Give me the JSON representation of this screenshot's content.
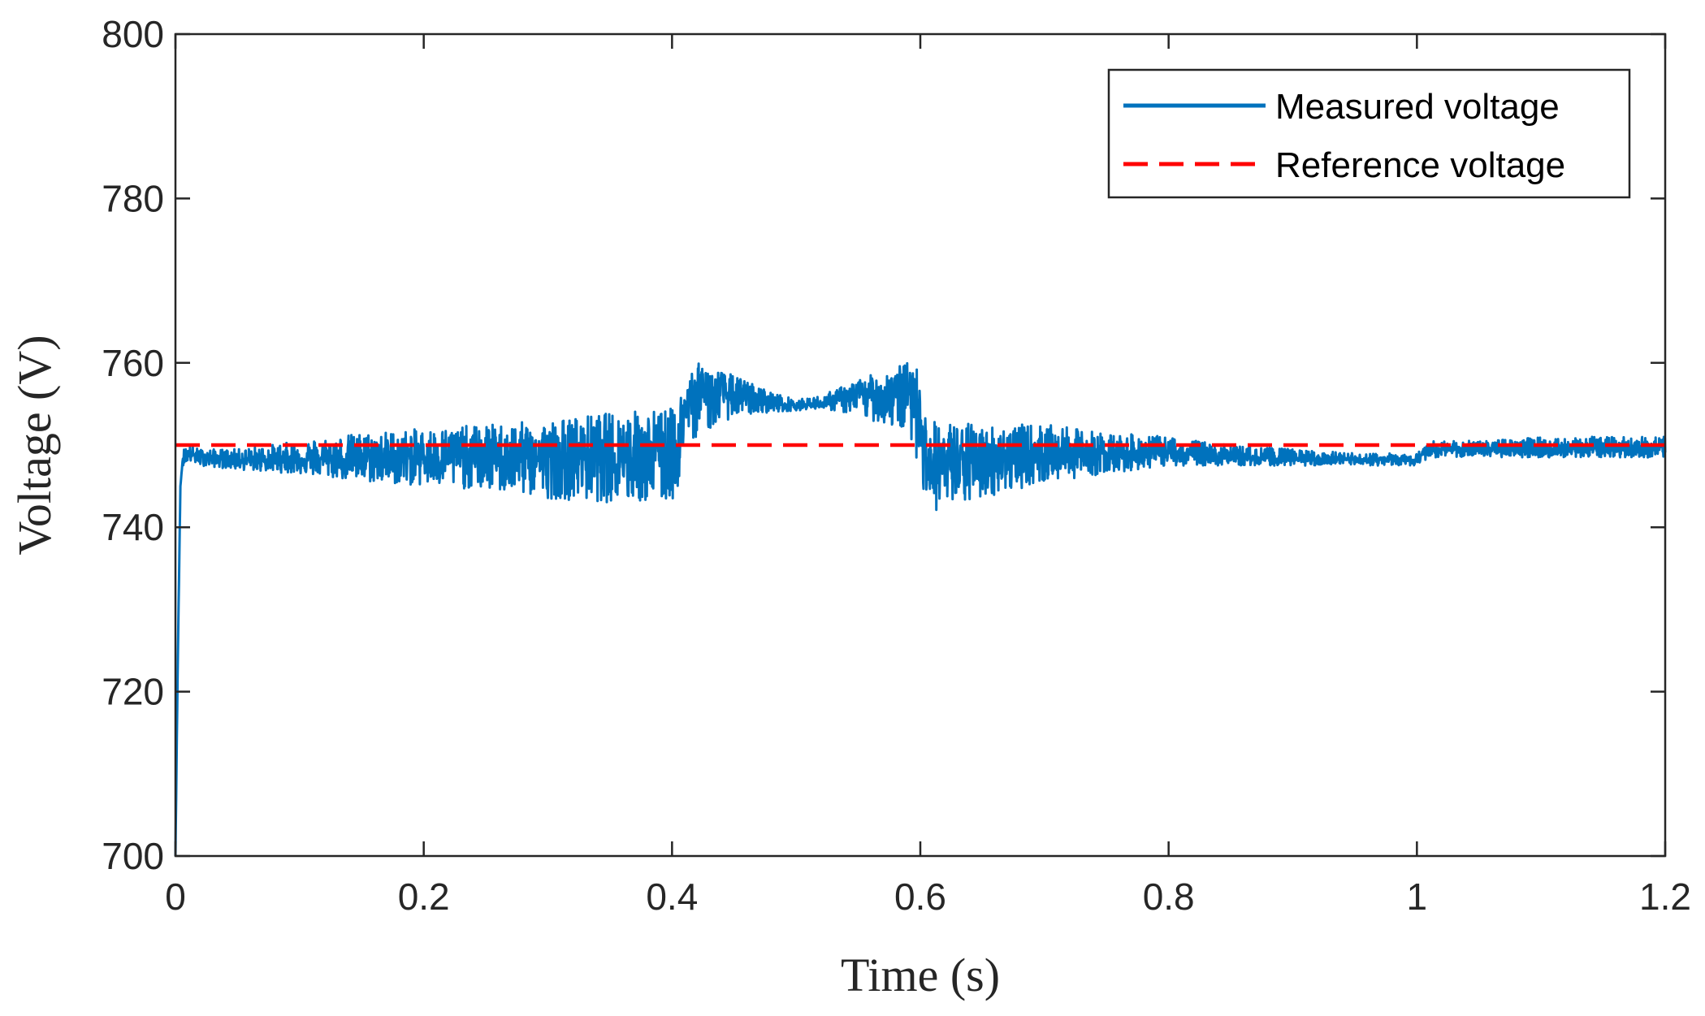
{
  "chart_data": {
    "type": "line",
    "title": "",
    "xlabel": "Time (s)",
    "ylabel": "Voltage (V)",
    "xlim": [
      0,
      1.2
    ],
    "ylim": [
      700,
      800
    ],
    "xticks": [
      0,
      0.2,
      0.4,
      0.6,
      0.8,
      1,
      1.2
    ],
    "xtick_labels": [
      "0",
      "0.2",
      "0.4",
      "0.6",
      "0.8",
      "1",
      "1.2"
    ],
    "yticks": [
      700,
      720,
      740,
      760,
      780,
      800
    ],
    "ytick_labels": [
      "700",
      "720",
      "740",
      "760",
      "780",
      "800"
    ],
    "grid": false,
    "legend_position": "top-right",
    "series": [
      {
        "name": "Measured voltage",
        "style": "solid",
        "color": "#0072BD",
        "x": [
          0,
          0.002,
          0.004,
          0.006,
          0.01,
          0.02,
          0.05,
          0.1,
          0.15,
          0.2,
          0.25,
          0.3,
          0.35,
          0.39,
          0.4,
          0.405,
          0.41,
          0.42,
          0.45,
          0.48,
          0.5,
          0.52,
          0.55,
          0.58,
          0.595,
          0.6,
          0.605,
          0.61,
          0.62,
          0.65,
          0.7,
          0.75,
          0.8,
          0.85,
          0.9,
          0.95,
          1.0,
          1.01,
          1.05,
          1.1,
          1.15,
          1.2
        ],
        "mean": [
          700,
          725,
          745,
          748.5,
          749,
          748.5,
          748.2,
          748.3,
          748.3,
          748.5,
          748.5,
          748.5,
          748.5,
          748.5,
          748.5,
          750,
          754,
          757,
          756,
          755,
          754.8,
          755,
          756,
          756.5,
          757,
          754,
          748.5,
          747.5,
          747.5,
          748,
          749,
          749,
          749,
          748.5,
          748.2,
          748.2,
          748.2,
          749.5,
          749.5,
          749.5,
          749.5,
          749.5
        ],
        "upper": [
          700,
          726,
          746,
          749.5,
          750,
          749.5,
          749.5,
          750.5,
          751.5,
          752,
          752.5,
          753,
          754,
          754.5,
          754.5,
          755,
          758.5,
          760,
          758.5,
          756.5,
          755.5,
          756,
          758,
          759.5,
          760.5,
          758,
          753,
          753,
          753,
          752.5,
          752.5,
          751.5,
          751,
          750,
          749.5,
          749,
          749,
          750.5,
          750.5,
          751,
          751,
          751
        ],
        "lower": [
          700,
          724,
          744,
          747.5,
          748,
          747.5,
          747,
          746.5,
          745.5,
          745,
          744.5,
          743.5,
          743,
          743,
          743,
          745,
          750,
          751,
          753.5,
          754,
          754.2,
          754.5,
          753.5,
          752,
          750.5,
          745,
          743,
          742,
          742,
          743.5,
          745.5,
          746.5,
          747.5,
          747.5,
          747.5,
          747.5,
          747.5,
          748.5,
          748.5,
          748.5,
          748.5,
          748.5
        ]
      },
      {
        "name": "Reference voltage",
        "style": "dashed",
        "color": "#FF0000",
        "x": [
          0,
          1.2
        ],
        "y": [
          750,
          750
        ]
      }
    ]
  }
}
